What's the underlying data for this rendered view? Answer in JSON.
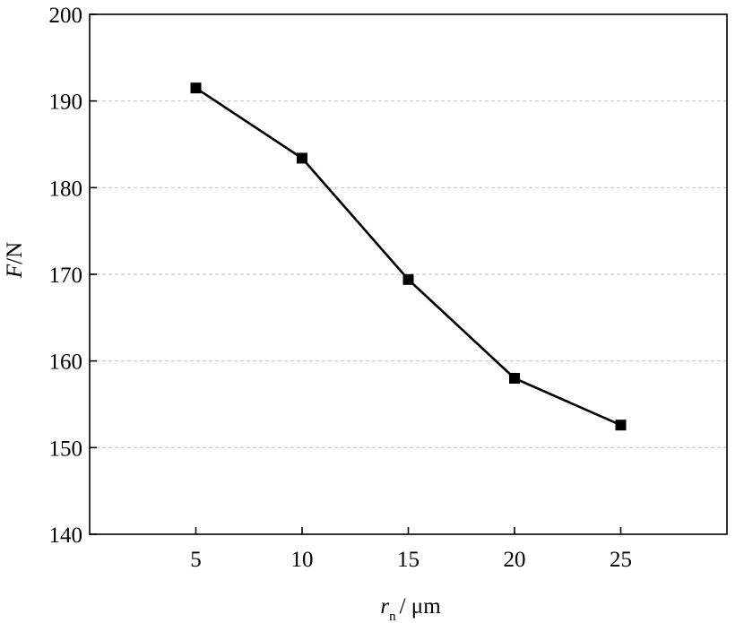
{
  "chart_data": {
    "type": "line",
    "title": "",
    "x": [
      5,
      10,
      15,
      20,
      25
    ],
    "series": [
      {
        "values": [
          191.5,
          183.4,
          169.4,
          158.0,
          152.6
        ]
      }
    ],
    "xlabel_main": "r",
    "xlabel_sub": "n",
    "xlabel_unit": "/ μm",
    "ylabel_main": "F",
    "ylabel_unit": "/N",
    "xlim": [
      0,
      30
    ],
    "ylim": [
      140,
      200
    ],
    "xticks": [
      5,
      10,
      15,
      20,
      25
    ],
    "yticks": [
      140,
      150,
      160,
      170,
      180,
      190,
      200
    ],
    "grid": "horizontal-dashed",
    "marker": "square",
    "colors": {
      "line": "#000000",
      "grid": "#c8c8c8"
    }
  }
}
